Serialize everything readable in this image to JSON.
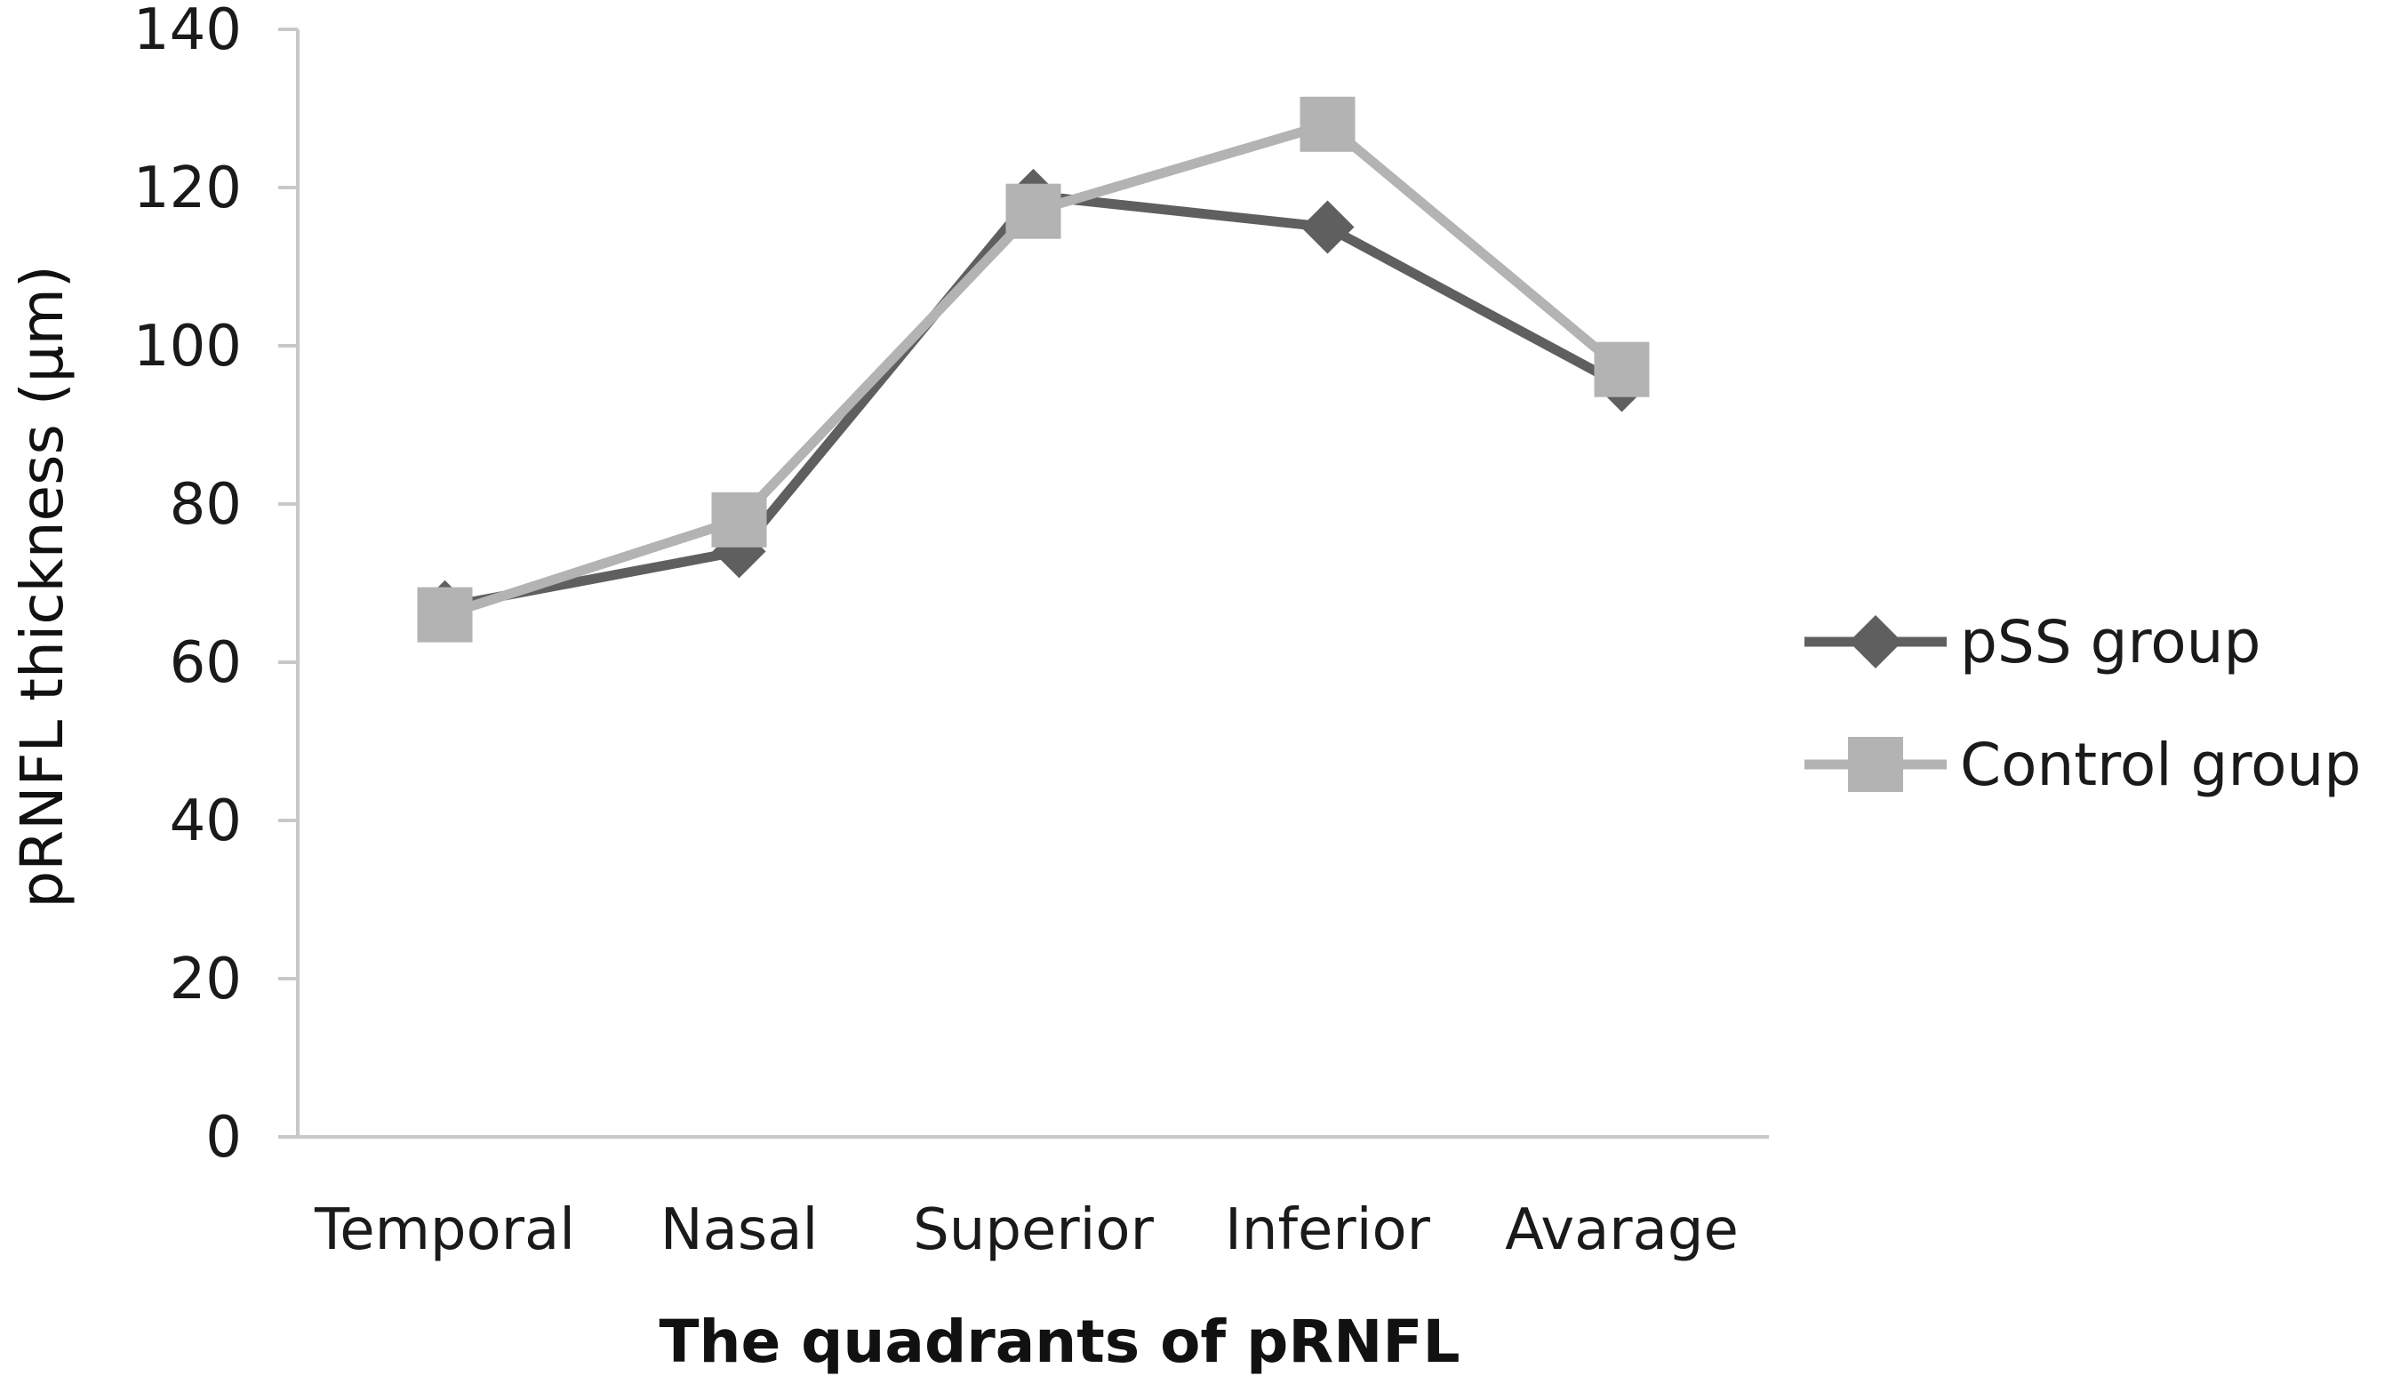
{
  "chart_data": {
    "type": "line",
    "categories": [
      "Temporal",
      "Nasal",
      "Superior",
      "Inferior",
      "Avarage"
    ],
    "series": [
      {
        "name": "pSS group",
        "values": [
          67,
          74,
          119,
          115,
          95
        ],
        "color": "#5f5f5f",
        "marker": "diamond"
      },
      {
        "name": "Control group",
        "values": [
          66,
          78,
          117,
          128,
          97
        ],
        "color": "#b3b3b3",
        "marker": "square"
      }
    ],
    "xlabel": "The quadrants of pRNFL",
    "ylabel": "pRNFL thickness (μm)",
    "ylim": [
      0,
      140
    ],
    "yticks": [
      0,
      20,
      40,
      60,
      80,
      100,
      120,
      140
    ],
    "grid": false,
    "legend_position": "right"
  }
}
